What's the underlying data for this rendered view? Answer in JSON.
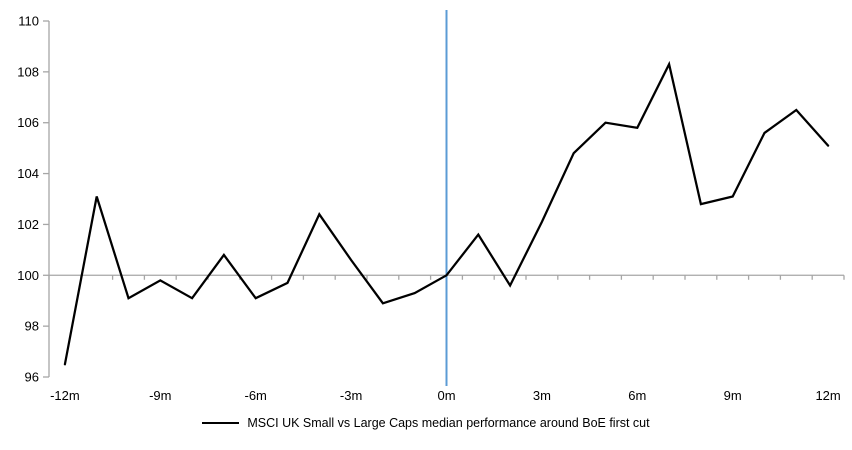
{
  "chart_data": {
    "type": "line",
    "title": "",
    "xlabel": "",
    "ylabel": "",
    "x_unit": "months relative to first BoE rate cut",
    "x": [
      -12,
      -11,
      -10,
      -9,
      -8,
      -7,
      -6,
      -5,
      -4,
      -3,
      -2,
      -1,
      0,
      1,
      2,
      3,
      4,
      5,
      6,
      7,
      8,
      9,
      10,
      11,
      12
    ],
    "series": [
      {
        "name": "MSCI UK Small vs Large Caps median performance around BoE first cut",
        "color": "#000000",
        "values": [
          96.5,
          103.1,
          99.1,
          99.8,
          99.1,
          100.8,
          99.1,
          99.7,
          102.4,
          100.6,
          98.9,
          99.3,
          100.0,
          101.6,
          99.6,
          102.1,
          104.8,
          106.0,
          105.8,
          108.3,
          102.8,
          103.1,
          105.6,
          106.5,
          105.1
        ]
      }
    ],
    "ylim": [
      96,
      110
    ],
    "xlim": [
      -12.5,
      12.5
    ],
    "y_ticks": [
      110,
      108,
      106,
      104,
      102,
      100,
      98,
      96
    ],
    "y_tick_labels": [
      "110",
      "108",
      "106",
      "104",
      "102",
      "100",
      "98",
      "96"
    ],
    "x_tick_positions": [
      -12,
      -9,
      -6,
      -3,
      0,
      3,
      6,
      9,
      12
    ],
    "x_tick_labels": [
      "-12m",
      "-9m",
      "-6m",
      "-3m",
      "0m",
      "3m",
      "6m",
      "9m",
      "12m"
    ],
    "grid": "off",
    "legend_position": "bottom-center",
    "reference_lines": {
      "horizontal_at_y": 100,
      "horizontal_color": "#A6A6A6",
      "vertical_at_x": 0,
      "vertical_color": "#5B9BD5"
    },
    "axis_color": "#A6A6A6",
    "background_color": "#FFFFFF"
  }
}
